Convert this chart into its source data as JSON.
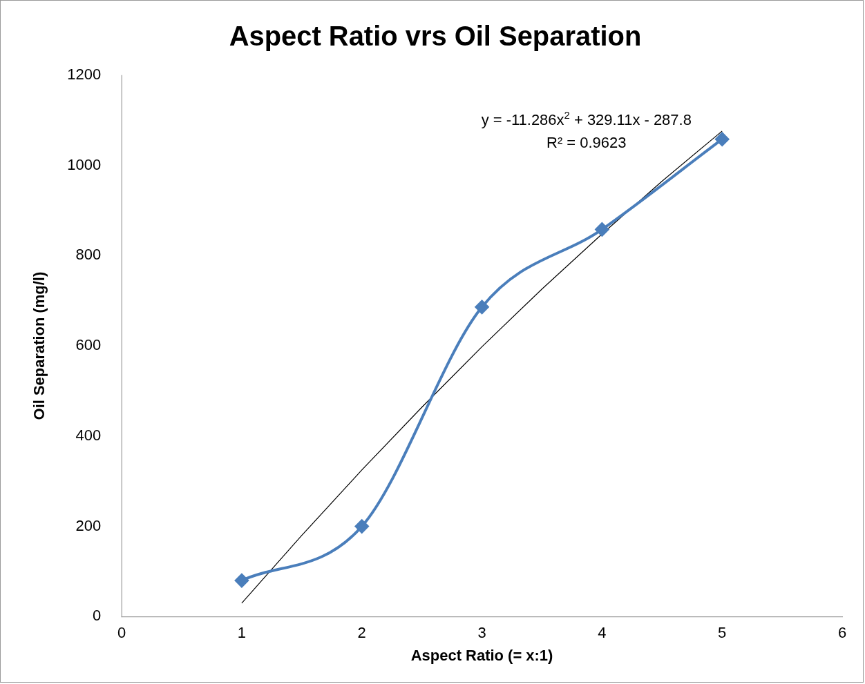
{
  "chart_data": {
    "type": "line",
    "title": "Aspect Ratio vrs Oil Separation",
    "xlabel": "Aspect Ratio (= x:1)",
    "ylabel": "Oil Separation (mg/l)",
    "xlim": [
      0,
      6
    ],
    "xticks": [
      0,
      1,
      2,
      3,
      4,
      5,
      6
    ],
    "ylim": [
      0,
      1200
    ],
    "yticks": [
      0,
      200,
      400,
      600,
      800,
      1000,
      1200
    ],
    "series": [
      {
        "color": "#4a7ebb",
        "marker": "diamond",
        "x": [
          1,
          2,
          3,
          4,
          5
        ],
        "values": [
          80,
          200,
          686,
          858,
          1058
        ]
      },
      {
        "color": "#000000",
        "marker": "none",
        "x": [
          1,
          1.5,
          2,
          2.5,
          3,
          3.5,
          4,
          4.5,
          5
        ],
        "values": [
          30,
          180,
          325,
          464,
          598,
          726,
          848,
          965,
          1076
        ]
      }
    ],
    "annotations": [
      "y = -11.286x$^{2}$ + 329.11x - 287.8",
      "R² = 0.9623"
    ],
    "grid": false,
    "legend": false
  }
}
